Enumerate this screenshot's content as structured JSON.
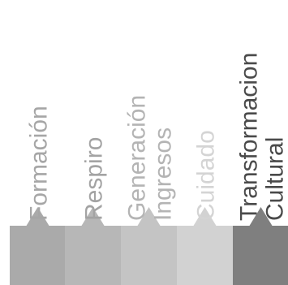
{
  "stages": [
    {
      "label_lines": [
        "Formación"
      ],
      "color": "#aaaaaa",
      "text_color": "#a6a6a6"
    },
    {
      "label_lines": [
        "Respiro"
      ],
      "color": "#b7b7b7",
      "text_color": "#a3a3a3"
    },
    {
      "label_lines": [
        "Generación",
        "Ingresos"
      ],
      "color": "#c4c4c4",
      "text_color": "#b4b4b4"
    },
    {
      "label_lines": [
        "Cuidado"
      ],
      "color": "#d2d2d2",
      "text_color": "#d4d4d4"
    },
    {
      "label_lines": [
        "Transformacion",
        "Cultural"
      ],
      "color": "#7f7f7f",
      "text_color": "#4a4a4a"
    }
  ]
}
